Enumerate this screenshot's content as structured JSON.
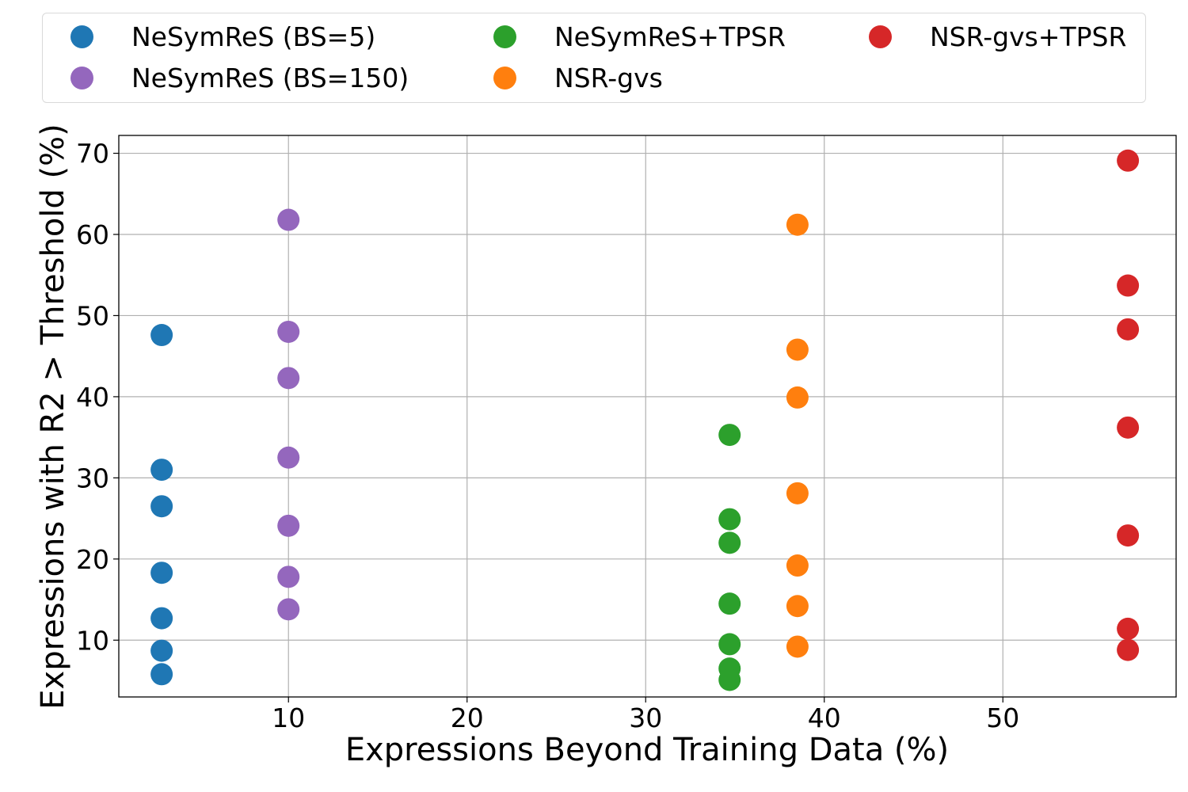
{
  "chart_data": {
    "type": "scatter",
    "xlabel": "Expressions Beyond Training Data (%)",
    "ylabel": "Expressions with R2 > Threshold (%)",
    "xlim": [
      0.5,
      59.7
    ],
    "ylim": [
      3.0,
      72.2
    ],
    "xticks": [
      10,
      20,
      30,
      40,
      50
    ],
    "yticks": [
      10,
      20,
      30,
      40,
      50,
      60,
      70
    ],
    "grid": true,
    "legend_position": "top",
    "series": [
      {
        "name": "NeSymReS (BS=5)",
        "color": "#1f77b4",
        "x": 2.9,
        "values": [
          47.6,
          31.0,
          26.5,
          18.3,
          12.7,
          8.7,
          5.8
        ]
      },
      {
        "name": "NeSymReS (BS=150)",
        "color": "#9467bd",
        "x": 10.0,
        "values": [
          61.8,
          48.0,
          42.3,
          32.5,
          24.1,
          17.8,
          13.8
        ]
      },
      {
        "name": "NeSymReS+TPSR",
        "color": "#2ca02c",
        "x": 34.7,
        "values": [
          35.3,
          24.9,
          22.0,
          14.5,
          9.5,
          6.5,
          5.1
        ]
      },
      {
        "name": "NSR-gvs",
        "color": "#ff7f0e",
        "x": 38.5,
        "values": [
          61.2,
          45.8,
          39.9,
          28.1,
          19.2,
          14.2,
          9.2
        ]
      },
      {
        "name": "NSR-gvs+TPSR",
        "color": "#d62728",
        "x": 57.0,
        "values": [
          69.1,
          53.7,
          48.3,
          36.2,
          22.9,
          11.4,
          8.8
        ]
      }
    ]
  }
}
